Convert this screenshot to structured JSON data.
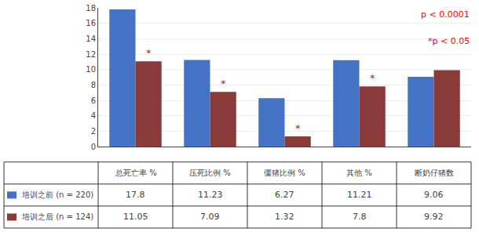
{
  "chart_data": {
    "type": "bar",
    "categories": [
      "总死亡率 %",
      "压死比例 %",
      "僵猪比例 %",
      "其他 %",
      "断奶仔猪数"
    ],
    "series": [
      {
        "name": "培训之前 (n = 220)",
        "color": "#4472C4",
        "values": [
          17.8,
          11.23,
          6.27,
          11.21,
          9.06
        ]
      },
      {
        "name": "培训之后 (n = 124)",
        "color": "#8B3A3A",
        "values": [
          11.05,
          7.09,
          1.32,
          7.8,
          9.92
        ]
      }
    ],
    "ylim": [
      0,
      18
    ],
    "yticks": [
      0,
      2,
      4,
      6,
      8,
      10,
      12,
      14,
      16,
      18
    ],
    "grid": true,
    "tick_labels": "y",
    "data_labels": true,
    "annotations": [
      {
        "text": "p < 0.0001",
        "color": "red"
      },
      {
        "text": "*p < 0.05",
        "color": "red"
      },
      {
        "text": "*",
        "category": "总死亡率 %",
        "series": "培训之后 (n = 124)"
      },
      {
        "text": "*",
        "category": "压死比例 %",
        "series": "培训之后 (n = 124)"
      },
      {
        "text": "*",
        "category": "僵猪比例 %",
        "series": "培训之后 (n = 124)"
      },
      {
        "text": "*",
        "category": "其他 %",
        "series": "培训之后 (n = 124)"
      }
    ]
  }
}
